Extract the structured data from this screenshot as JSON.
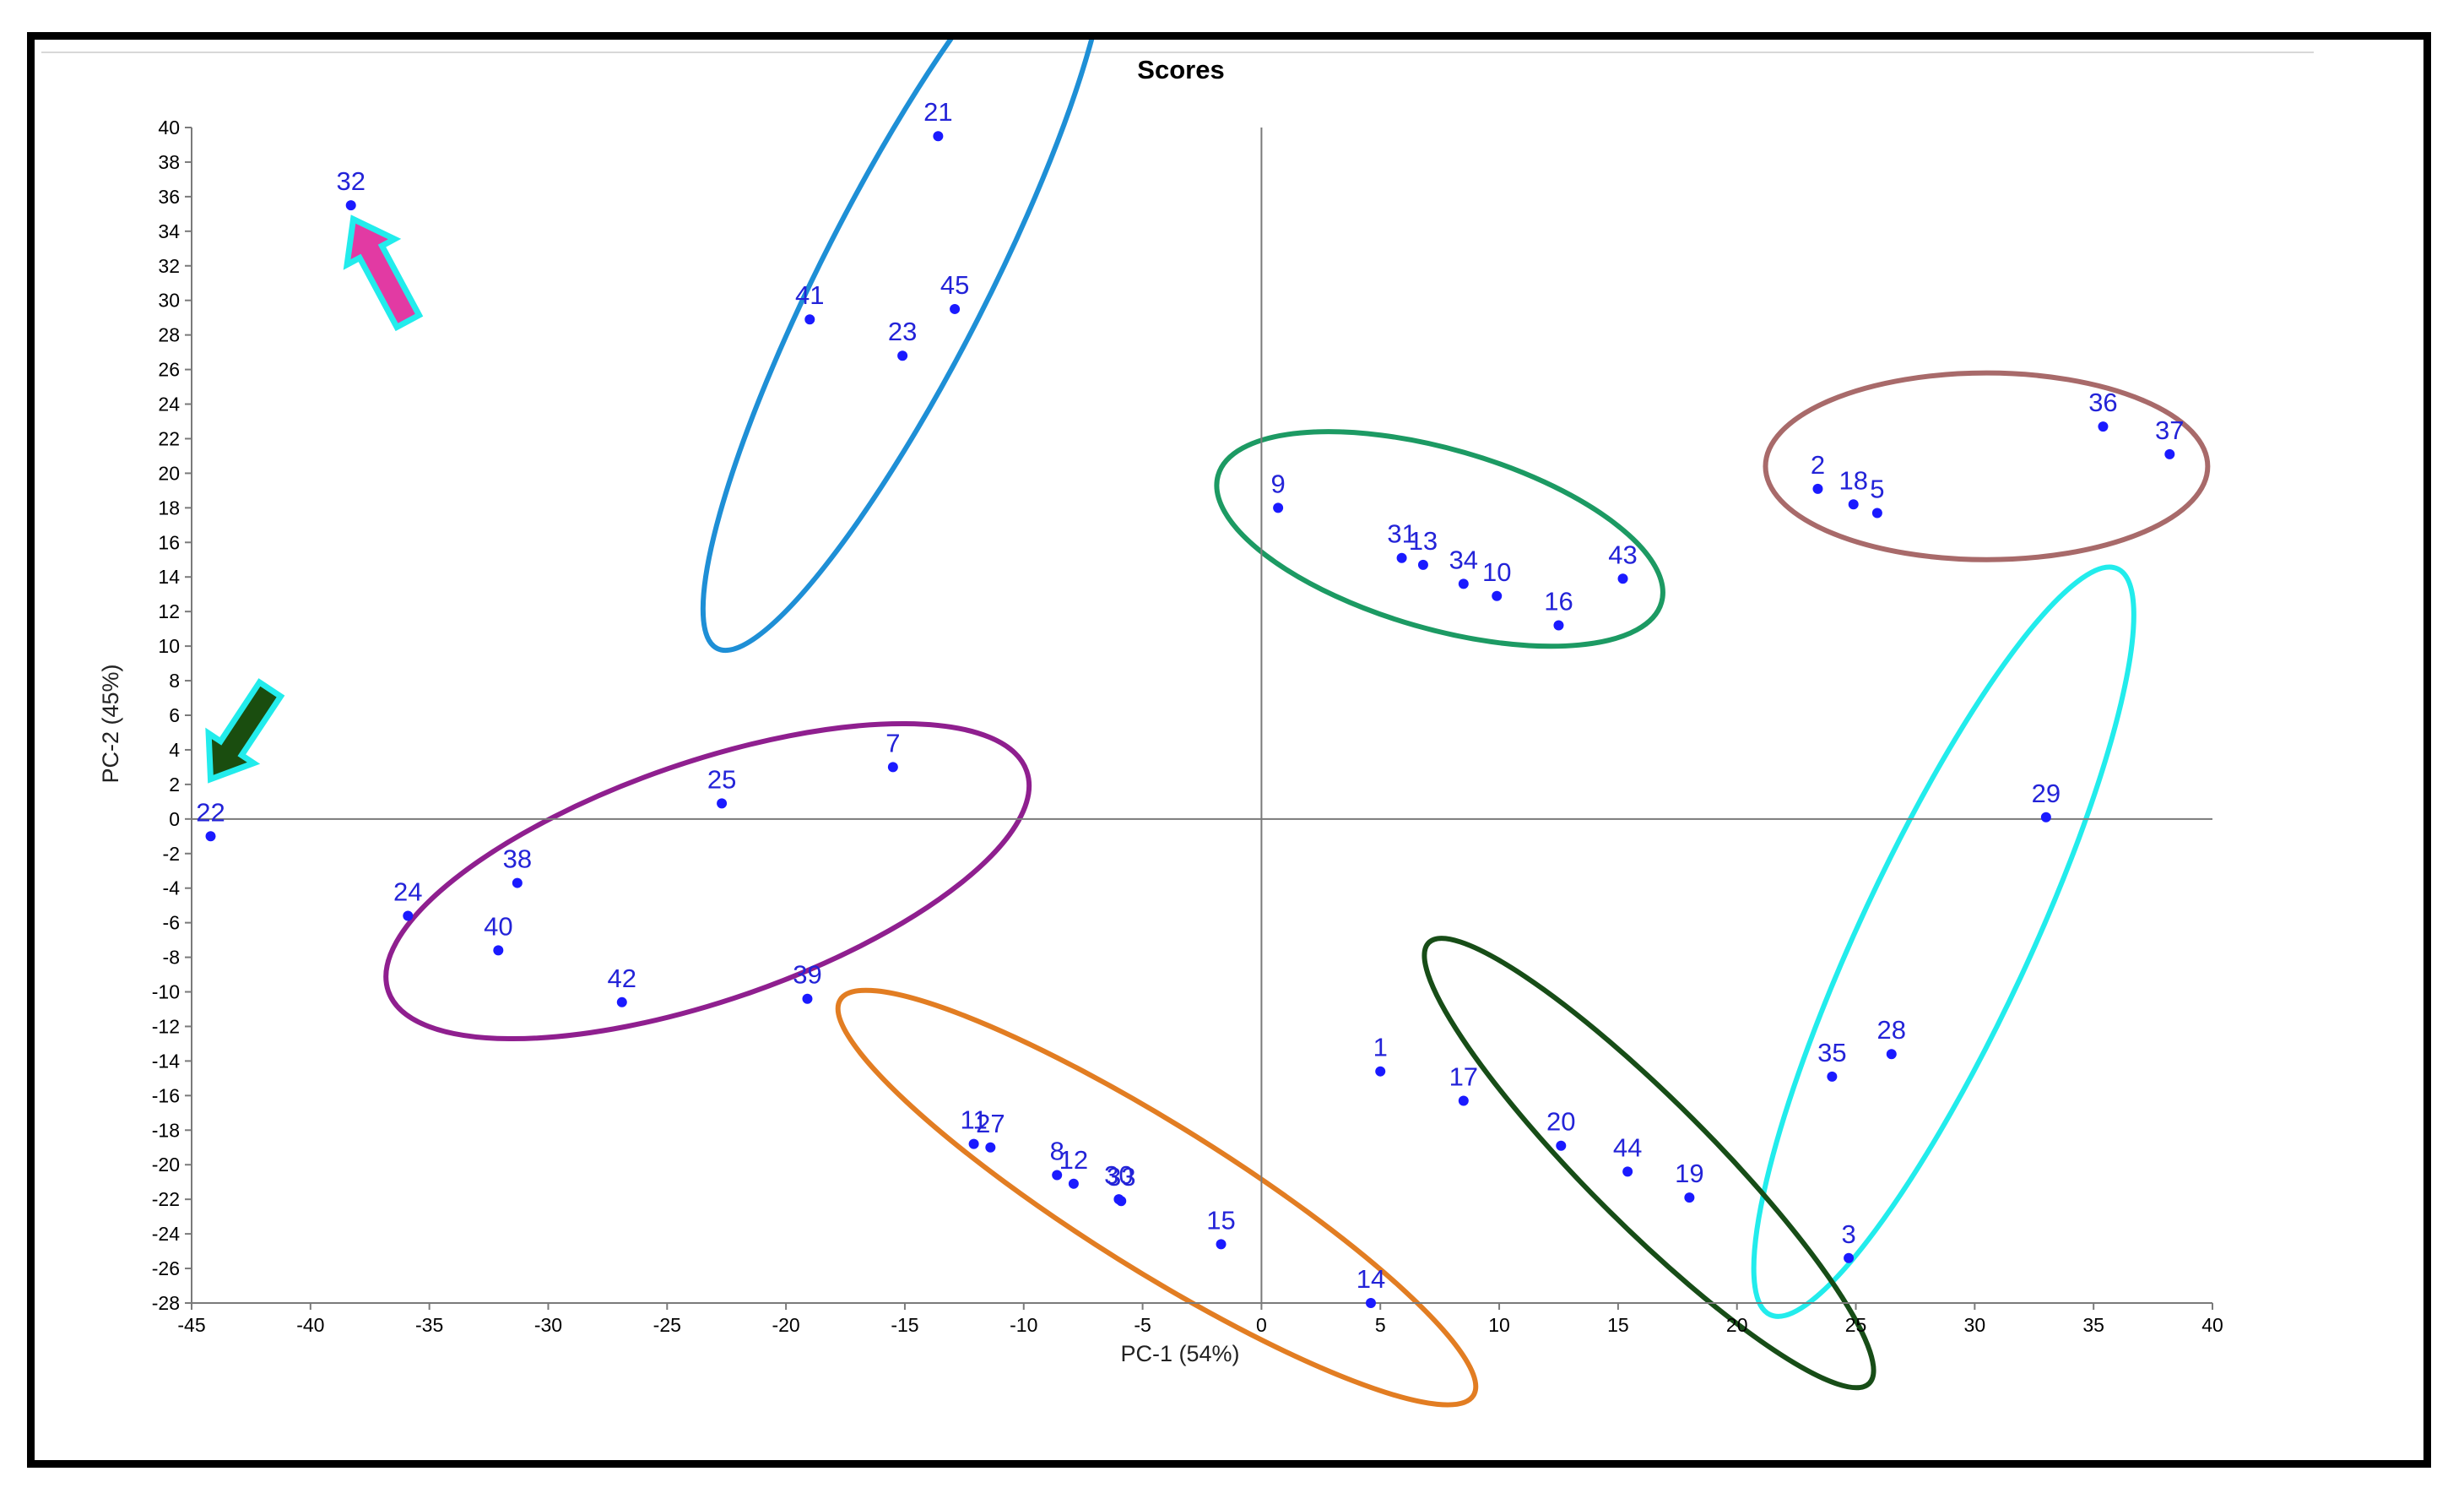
{
  "chart_data": {
    "type": "scatter",
    "title": "Scores",
    "xlabel": "PC-1 (54%)",
    "ylabel": "PC-2 (45%)",
    "xlim": [
      -45,
      40
    ],
    "ylim": [
      -28,
      40
    ],
    "xticks": [
      -45,
      -40,
      -35,
      -30,
      -25,
      -20,
      -15,
      -10,
      -5,
      0,
      5,
      10,
      15,
      20,
      25,
      30,
      35,
      40
    ],
    "yticks": [
      -28,
      -26,
      -24,
      -22,
      -20,
      -18,
      -16,
      -14,
      -12,
      -10,
      -8,
      -6,
      -4,
      -2,
      0,
      2,
      4,
      6,
      8,
      10,
      12,
      14,
      16,
      18,
      20,
      22,
      24,
      26,
      28,
      30,
      32,
      34,
      36,
      38,
      40
    ],
    "grid": false,
    "reference_lines": {
      "x": 0,
      "y": 0
    },
    "colors": {
      "points": "#1a1aff",
      "labels": "#2323d8",
      "axes": "#7a7a7a"
    },
    "points": [
      {
        "label": "32",
        "x": -38.3,
        "y": 35.5
      },
      {
        "label": "21",
        "x": -13.6,
        "y": 39.5
      },
      {
        "label": "41",
        "x": -19.0,
        "y": 28.9
      },
      {
        "label": "23",
        "x": -15.1,
        "y": 26.8
      },
      {
        "label": "45",
        "x": -12.9,
        "y": 29.5
      },
      {
        "label": "36",
        "x": 35.4,
        "y": 22.7
      },
      {
        "label": "37",
        "x": 38.2,
        "y": 21.1
      },
      {
        "label": "2",
        "x": 23.4,
        "y": 19.1
      },
      {
        "label": "18",
        "x": 24.9,
        "y": 18.2
      },
      {
        "label": "5",
        "x": 25.9,
        "y": 17.7
      },
      {
        "label": "9",
        "x": 0.7,
        "y": 18.0
      },
      {
        "label": "31",
        "x": 5.9,
        "y": 15.1
      },
      {
        "label": "13",
        "x": 6.8,
        "y": 14.7
      },
      {
        "label": "34",
        "x": 8.5,
        "y": 13.6
      },
      {
        "label": "10",
        "x": 9.9,
        "y": 12.9
      },
      {
        "label": "16",
        "x": 12.5,
        "y": 11.2
      },
      {
        "label": "43",
        "x": 15.2,
        "y": 13.9
      },
      {
        "label": "22",
        "x": -44.2,
        "y": -1.0
      },
      {
        "label": "25",
        "x": -22.7,
        "y": 0.9
      },
      {
        "label": "7",
        "x": -15.5,
        "y": 3.0
      },
      {
        "label": "38",
        "x": -31.3,
        "y": -3.7
      },
      {
        "label": "24",
        "x": -35.9,
        "y": -5.6
      },
      {
        "label": "40",
        "x": -32.1,
        "y": -7.6
      },
      {
        "label": "42",
        "x": -26.9,
        "y": -10.6
      },
      {
        "label": "39",
        "x": -19.1,
        "y": -10.4
      },
      {
        "label": "29",
        "x": 33.0,
        "y": 0.1
      },
      {
        "label": "35",
        "x": 24.0,
        "y": -14.9
      },
      {
        "label": "28",
        "x": 26.5,
        "y": -13.6
      },
      {
        "label": "11",
        "x": -12.1,
        "y": -18.8
      },
      {
        "label": "27",
        "x": -11.4,
        "y": -19.0
      },
      {
        "label": "8",
        "x": -8.6,
        "y": -20.6
      },
      {
        "label": "12",
        "x": -7.9,
        "y": -21.1
      },
      {
        "label": "30",
        "x": -6.0,
        "y": -22.0
      },
      {
        "label": "33",
        "x": -5.9,
        "y": -22.1
      },
      {
        "label": "15",
        "x": -1.7,
        "y": -24.6
      },
      {
        "label": "14",
        "x": 4.6,
        "y": -28.0
      },
      {
        "label": "1",
        "x": 5.0,
        "y": -14.6
      },
      {
        "label": "17",
        "x": 8.5,
        "y": -16.3
      },
      {
        "label": "20",
        "x": 12.6,
        "y": -18.9
      },
      {
        "label": "44",
        "x": 15.4,
        "y": -20.4
      },
      {
        "label": "19",
        "x": 18.0,
        "y": -21.9
      },
      {
        "label": "3",
        "x": 24.7,
        "y": -25.4
      }
    ],
    "groups": [
      {
        "name": "blue",
        "color": "#1e8fd6",
        "cx": -15.0,
        "cy": 31.2,
        "rx": 17.4,
        "ry": 4.8,
        "angle": 63
      },
      {
        "name": "brown",
        "color": "#a86a6a",
        "cx": 30.5,
        "cy": 20.4,
        "rx": 9.3,
        "ry": 5.4,
        "angle": 0
      },
      {
        "name": "green",
        "color": "#1c9a63",
        "cx": 7.5,
        "cy": 16.2,
        "rx": 9.7,
        "ry": 5.2,
        "angle": -16
      },
      {
        "name": "purple",
        "color": "#8f1f8f",
        "cx": -23.3,
        "cy": -3.6,
        "rx": 14.2,
        "ry": 6.9,
        "angle": 19
      },
      {
        "name": "cyan",
        "color": "#22ecec",
        "cx": 28.7,
        "cy": -7.1,
        "rx": 17.3,
        "ry": 4.9,
        "angle": 65
      },
      {
        "name": "orange",
        "color": "#e27d22",
        "cx": -4.4,
        "cy": -21.9,
        "rx": 15.7,
        "ry": 4.2,
        "angle": -32
      },
      {
        "name": "dark-green",
        "color": "#174d17",
        "cx": 16.3,
        "cy": -19.9,
        "rx": 13.1,
        "ry": 3.6,
        "angle": -45
      }
    ],
    "arrows": [
      {
        "name": "magenta-arrow",
        "fill": "#e23aa3",
        "outline": "#22ecec",
        "from": [
          -35.9,
          28.8
        ],
        "to": [
          -38.2,
          34.7
        ]
      },
      {
        "name": "dark-green-arrow",
        "fill": "#1a4d0f",
        "outline": "#22ecec",
        "from": [
          -41.7,
          7.5
        ],
        "to": [
          -44.2,
          2.3
        ]
      }
    ]
  }
}
